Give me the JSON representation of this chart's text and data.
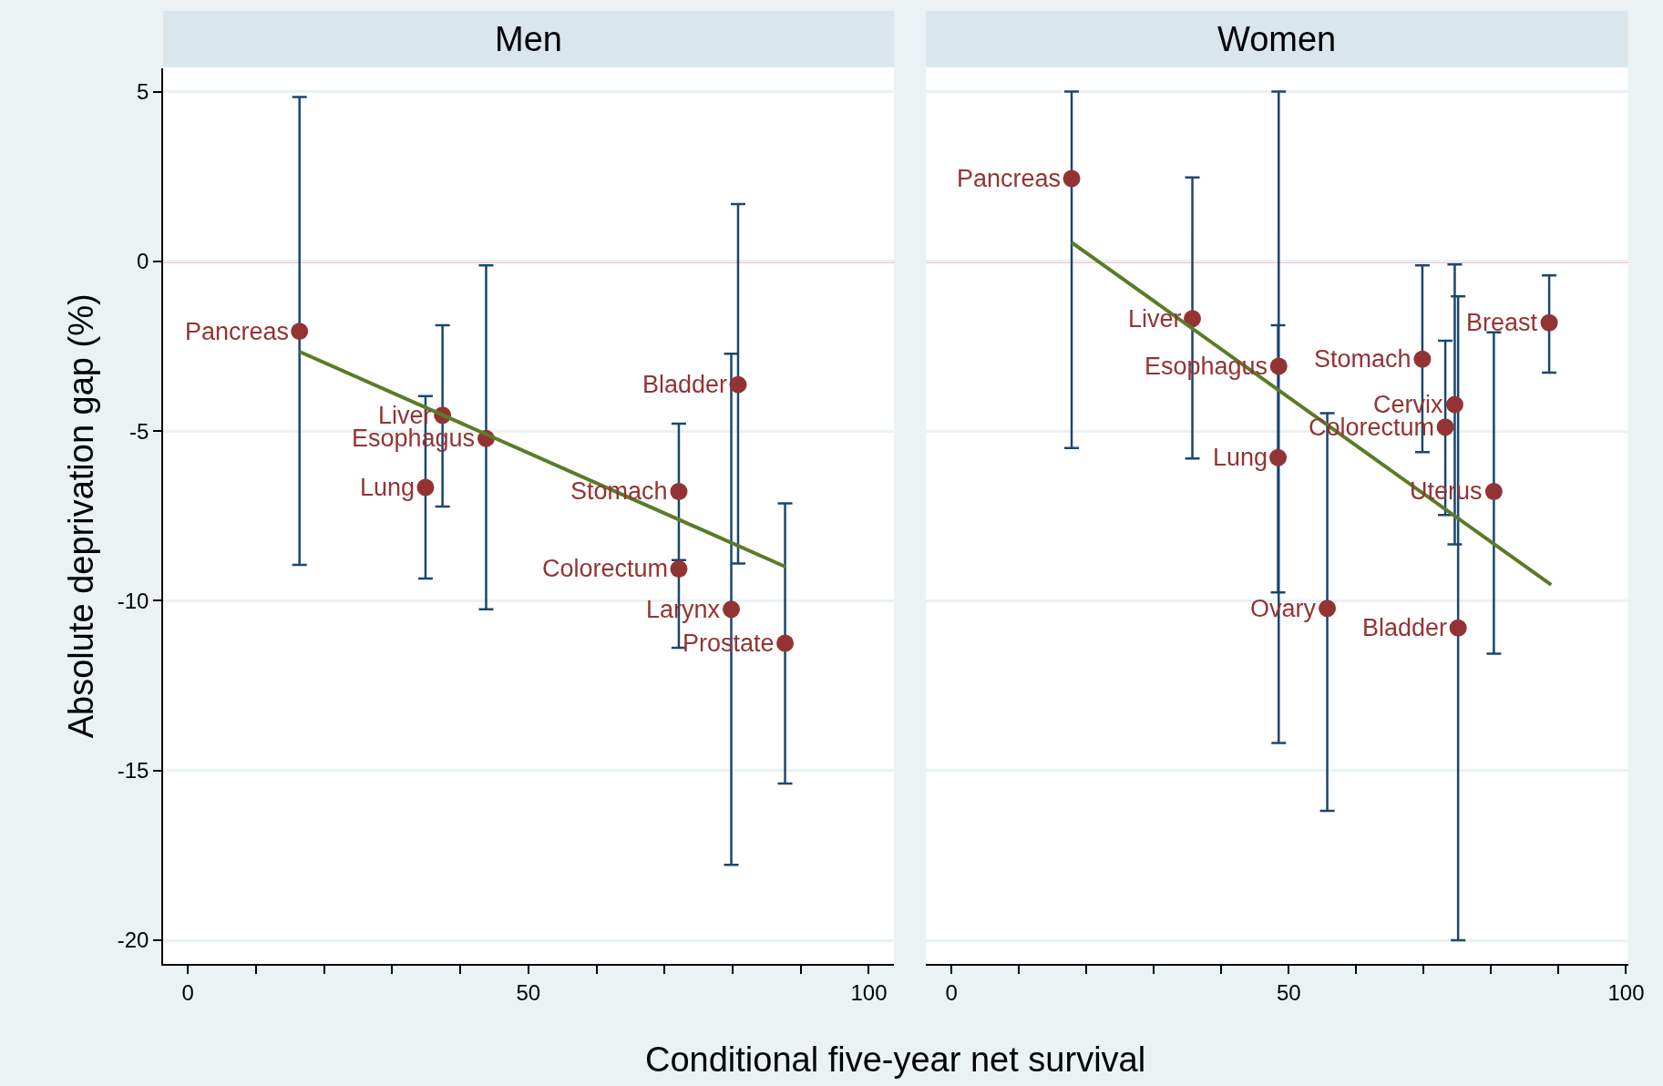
{
  "chart_data": [
    {
      "type": "scatter",
      "title": "Men",
      "xlabel": "Conditional five-year net survival",
      "ylabel": "Absolute deprivation gap (%)",
      "xlim": [
        -3.6,
        103.7
      ],
      "xticks": [
        0,
        {
          "value": 10,
          "label": null
        },
        {
          "value": 20,
          "label": null
        },
        {
          "value": 30,
          "label": null
        },
        {
          "value": 40,
          "label": null
        },
        50,
        {
          "value": 60,
          "label": null
        },
        {
          "value": 70,
          "label": null
        },
        {
          "value": 80,
          "label": null
        },
        {
          "value": 90,
          "label": null
        },
        100
      ],
      "ylim": [
        -20.7,
        5.7
      ],
      "yticks": [
        5,
        0,
        -5,
        -10,
        -15,
        -20
      ],
      "grid": "y",
      "ref_lines": [
        {
          "axis": "y",
          "value": 0,
          "color": "#c10534"
        }
      ],
      "series": [
        {
          "marker": "circle",
          "color": "#943334",
          "x": [
            16.4,
            37.4,
            43.8,
            34.9,
            72.1,
            72.1,
            79.8,
            80.8,
            87.7
          ],
          "values": [
            -2.06,
            -4.53,
            -5.22,
            -6.66,
            -6.78,
            -9.06,
            -10.25,
            -3.63,
            -11.25
          ],
          "errors": [
            [
              -8.94,
              4.84
            ],
            [
              -7.22,
              -1.88
            ],
            [
              -10.25,
              -0.12
            ],
            [
              -9.34,
              -3.97
            ],
            [
              -8.8,
              -4.78
            ],
            [
              -11.38,
              -9.06
            ],
            [
              -17.78,
              -2.72
            ],
            [
              -8.9,
              1.69
            ],
            [
              -15.38,
              -7.13
            ]
          ]
        },
        {
          "type": "line",
          "marker": "none",
          "color": "#5b7b27",
          "x": [
            16.4,
            87.8
          ],
          "values": [
            -2.66,
            -9.0
          ]
        }
      ],
      "annotations": [
        {
          "text": "Pancreas",
          "x": 16.4,
          "y": -2.06
        },
        {
          "text": "Liver",
          "x": 37.4,
          "y": -4.53
        },
        {
          "text": "Esophagus",
          "x": 43.8,
          "y": -5.22
        },
        {
          "text": "Lung",
          "x": 34.9,
          "y": -6.66
        },
        {
          "text": "Stomach",
          "x": 72.1,
          "y": -6.78
        },
        {
          "text": "Colorectum",
          "x": 72.1,
          "y": -9.06
        },
        {
          "text": "Larynx",
          "x": 79.8,
          "y": -10.25
        },
        {
          "text": "Bladder",
          "x": 80.8,
          "y": -3.63
        },
        {
          "text": "Prostate",
          "x": 87.7,
          "y": -11.25
        }
      ]
    },
    {
      "type": "scatter",
      "title": "Women",
      "xlim": [
        -3.8,
        100.3
      ],
      "xticks": [
        0,
        {
          "value": 10,
          "label": null
        },
        {
          "value": 20,
          "label": null
        },
        {
          "value": 30,
          "label": null
        },
        {
          "value": 40,
          "label": null
        },
        50,
        {
          "value": 60,
          "label": null
        },
        {
          "value": 70,
          "label": null
        },
        {
          "value": 80,
          "label": null
        },
        {
          "value": 90,
          "label": null
        },
        100
      ],
      "ylim": [
        -20.7,
        5.7
      ],
      "yticks": [
        5,
        0,
        -5,
        -10,
        -15,
        -20
      ],
      "tick_labels": "x",
      "grid": "y",
      "ref_lines": [
        {
          "axis": "y",
          "value": 0,
          "color": "#c10534"
        }
      ],
      "series": [
        {
          "marker": "circle",
          "color": "#943334",
          "x": [
            17.8,
            35.7,
            48.5,
            48.4,
            69.8,
            74.6,
            73.2,
            80.4,
            88.6,
            55.7,
            75.1
          ],
          "values": [
            2.44,
            -1.69,
            -3.09,
            -5.78,
            -2.88,
            -4.22,
            -4.88,
            -6.78,
            -1.81,
            -10.22,
            -10.8
          ],
          "errors": [
            [
              -5.5,
              5.0
            ],
            [
              -5.81,
              2.47
            ],
            [
              -14.19,
              5.0
            ],
            [
              -9.75,
              -1.88
            ],
            [
              -5.62,
              -0.12
            ],
            [
              -8.34,
              -0.09
            ],
            [
              -7.47,
              -2.34
            ],
            [
              -11.56,
              -2.09
            ],
            [
              -3.28,
              -0.41
            ],
            [
              -16.19,
              -4.47
            ],
            [
              -20.0,
              -1.03
            ]
          ]
        },
        {
          "type": "line",
          "marker": "none",
          "color": "#5b7b27",
          "x": [
            17.8,
            88.9
          ],
          "values": [
            0.56,
            -9.53
          ]
        }
      ],
      "annotations": [
        {
          "text": "Pancreas",
          "x": 17.8,
          "y": 2.44
        },
        {
          "text": "Liver",
          "x": 35.7,
          "y": -1.69
        },
        {
          "text": "Esophagus",
          "x": 48.5,
          "y": -3.09
        },
        {
          "text": "Lung",
          "x": 48.4,
          "y": -5.78
        },
        {
          "text": "Stomach",
          "x": 69.8,
          "y": -2.88
        },
        {
          "text": "Cervix",
          "x": 74.6,
          "y": -4.22
        },
        {
          "text": "Colorectum",
          "x": 73.2,
          "y": -4.88
        },
        {
          "text": "Uterus",
          "x": 80.4,
          "y": -6.78
        },
        {
          "text": "Breast",
          "x": 88.6,
          "y": -1.81
        },
        {
          "text": "Ovary",
          "x": 55.7,
          "y": -10.22
        },
        {
          "text": "Bladder",
          "x": 75.1,
          "y": -10.8
        }
      ]
    }
  ]
}
